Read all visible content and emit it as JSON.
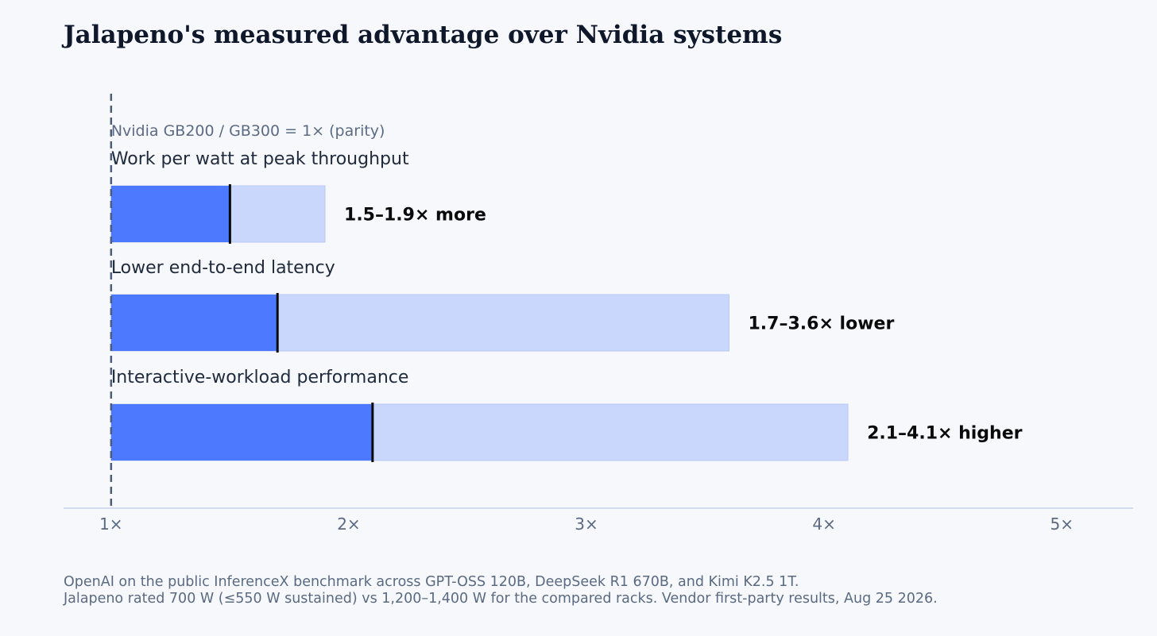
{
  "chart_data": {
    "type": "bar",
    "orientation": "horizontal",
    "title": "Jalapeno's measured advantage over Nvidia systems",
    "xlabel": "",
    "ylabel": "",
    "xlim": [
      0.8,
      5.3
    ],
    "x_ticks": [
      1,
      2,
      3,
      4,
      5
    ],
    "x_tick_labels": [
      "1×",
      "2×",
      "3×",
      "4×",
      "5×"
    ],
    "grid": false,
    "reference_line": {
      "value": 1,
      "label": "Nvidia GB200 / GB300 = 1× (parity)"
    },
    "categories": [
      "Work per watt at peak throughput",
      "Lower end-to-end latency",
      "Interactive-workload performance"
    ],
    "ranges": [
      {
        "low": 1.5,
        "high": 1.9,
        "label": "1.5–1.9× more"
      },
      {
        "low": 1.7,
        "high": 3.6,
        "label": "1.7–3.6× lower"
      },
      {
        "low": 2.1,
        "high": 4.1,
        "label": "2.1–4.1× higher"
      }
    ],
    "colors": {
      "low_segment": "#4d79ff",
      "range_segment": "#c9d7fd",
      "marker": "#0a0a0a",
      "reference_line": "#4b5d78",
      "axis": "#c8d2e8",
      "tick_text": "#5a6a82",
      "category_text": "#1f2a3c",
      "value_text": "#0a0a0a"
    }
  },
  "footnote": {
    "line1": "OpenAI on the public InferenceX benchmark across GPT-OSS 120B, DeepSeek R1 670B, and Kimi K2.5 1T.",
    "line2": "Jalapeno rated 700 W (≤550 W sustained) vs 1,200–1,400 W for the compared racks. Vendor first-party results, Aug 25 2026."
  }
}
